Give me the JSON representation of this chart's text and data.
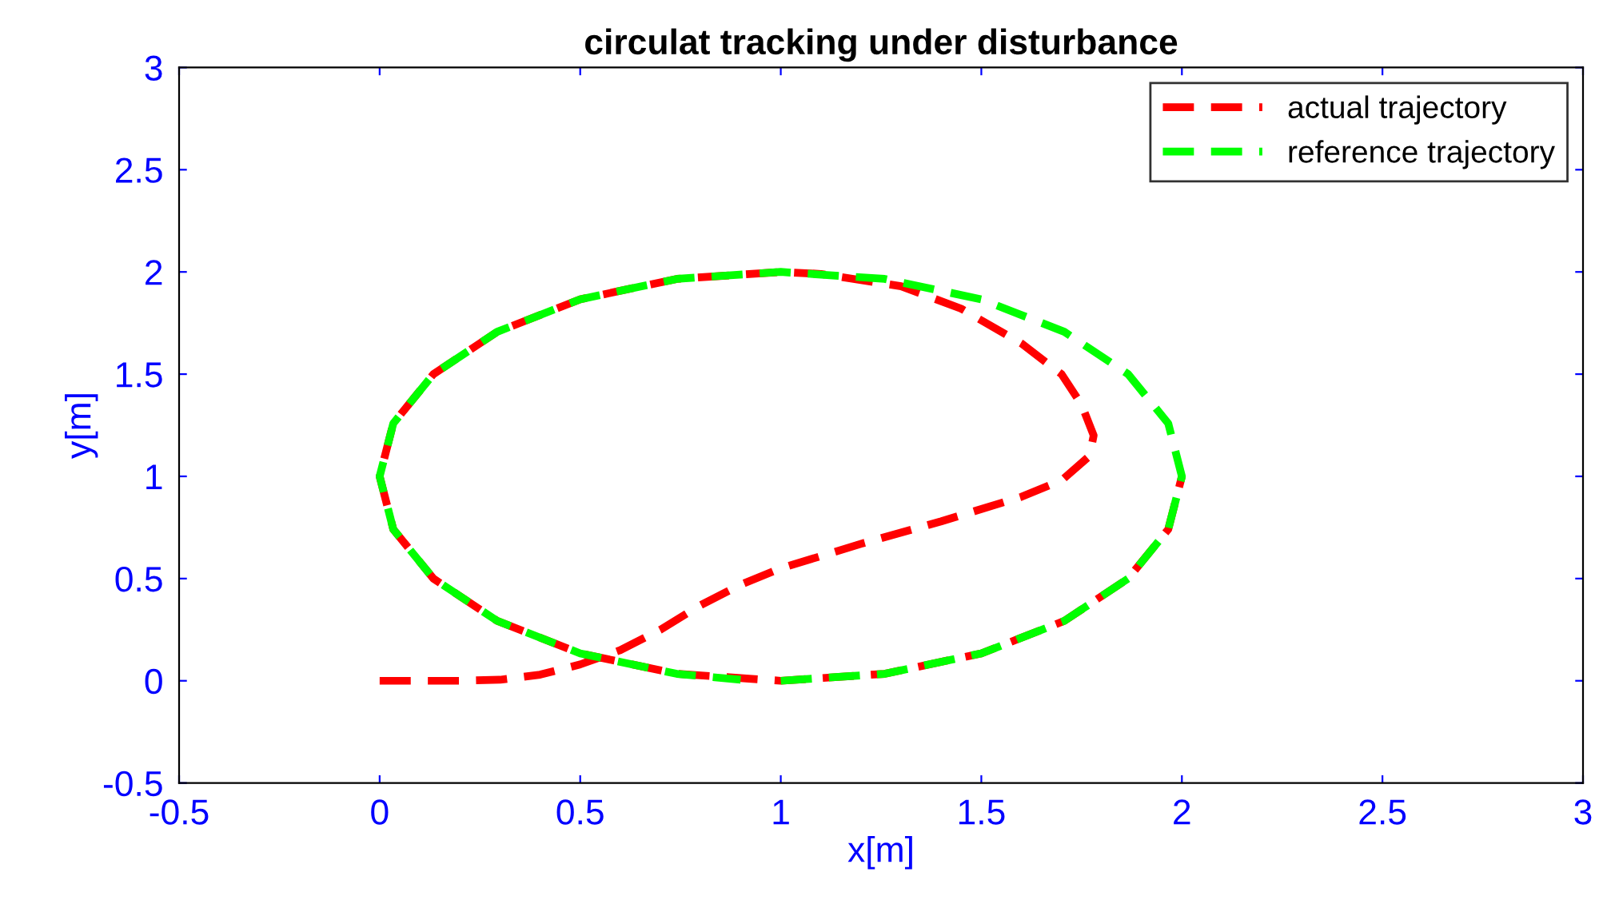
{
  "chart_data": {
    "type": "line",
    "title": "circulat tracking under disturbance",
    "xlabel": "x[m]",
    "ylabel": "y[m]",
    "xlim": [
      -0.5,
      3
    ],
    "ylim": [
      -0.5,
      3
    ],
    "xticks": [
      -0.5,
      0,
      0.5,
      1,
      1.5,
      2,
      2.5,
      3
    ],
    "yticks": [
      -0.5,
      0,
      0.5,
      1,
      1.5,
      2,
      2.5,
      3
    ],
    "grid": false,
    "legend": "top right",
    "line_style": "dashed",
    "marker": "none",
    "series": [
      {
        "name": "actual trajectory",
        "color": "#ff0000",
        "x": [
          0,
          0.1,
          0.2,
          0.3,
          0.4,
          0.5,
          0.6,
          0.7,
          0.8,
          0.9,
          1.0,
          1.2,
          1.4,
          1.6,
          1.7,
          1.77,
          1.78,
          1.75,
          1.7,
          1.6,
          1.45,
          1.3,
          1.1,
          1,
          0.741,
          0.5,
          0.293,
          0.134,
          0.034,
          0,
          0.034,
          0.134,
          0.293,
          0.5,
          0.741,
          1,
          1.259,
          1.5,
          1.707,
          1.866,
          1.966,
          2
        ],
        "values": [
          0,
          0,
          0,
          0.005,
          0.03,
          0.08,
          0.15,
          0.25,
          0.37,
          0.47,
          0.55,
          0.67,
          0.78,
          0.9,
          0.98,
          1.1,
          1.2,
          1.35,
          1.5,
          1.65,
          1.82,
          1.93,
          1.99,
          2,
          1.966,
          1.866,
          1.707,
          1.5,
          1.259,
          1,
          0.741,
          0.5,
          0.293,
          0.134,
          0.034,
          0,
          0.034,
          0.134,
          0.293,
          0.5,
          0.741,
          1
        ]
      },
      {
        "name": "reference trajectory",
        "color": "#00ff00",
        "x": [
          1,
          1.259,
          1.5,
          1.707,
          1.866,
          1.966,
          2,
          1.966,
          1.866,
          1.707,
          1.5,
          1.259,
          1,
          0.741,
          0.5,
          0.293,
          0.134,
          0.034,
          0,
          0.034,
          0.134,
          0.293,
          0.5,
          0.741,
          0.9
        ],
        "values": [
          0,
          0.034,
          0.134,
          0.293,
          0.5,
          0.741,
          1,
          1.259,
          1.5,
          1.707,
          1.866,
          1.966,
          2,
          1.966,
          1.866,
          1.707,
          1.5,
          1.259,
          1,
          0.741,
          0.5,
          0.293,
          0.134,
          0.034,
          0.005
        ]
      }
    ]
  }
}
